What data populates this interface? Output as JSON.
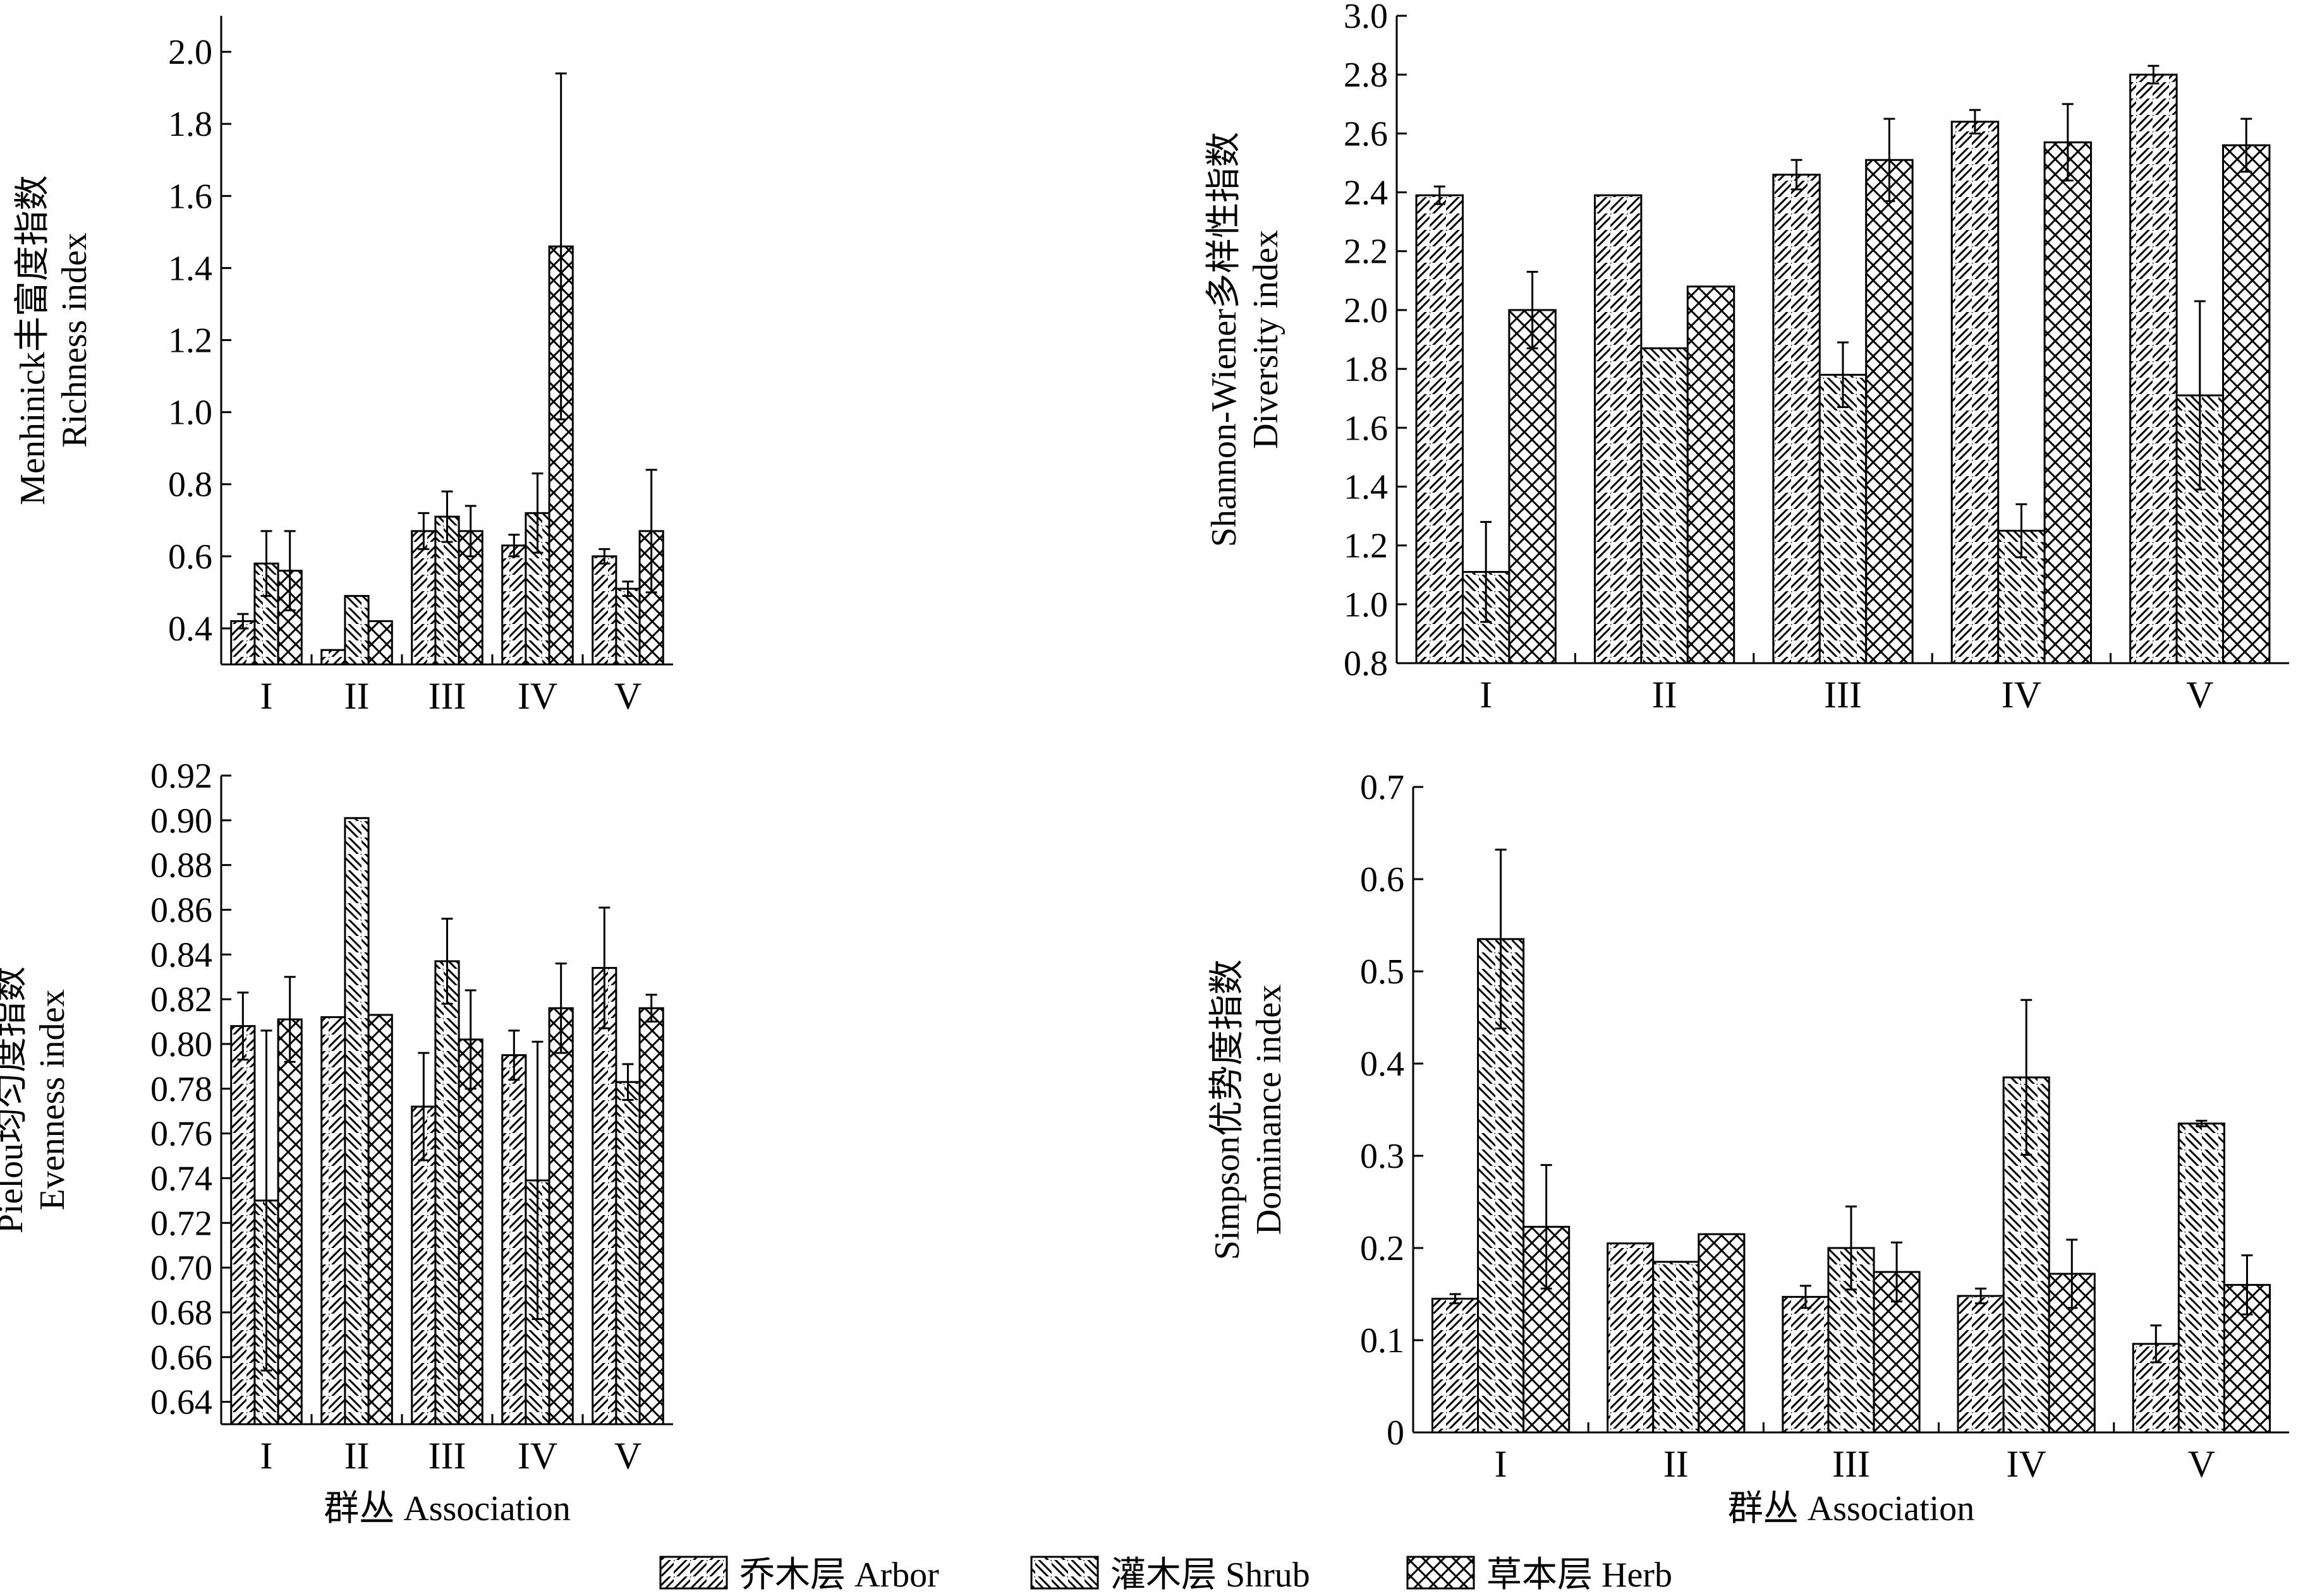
{
  "chart_data": [
    {
      "type": "bar",
      "ylabel": [
        "Menhinick丰富度指数",
        "Richness index"
      ],
      "xlabel": "",
      "categories": [
        "I",
        "II",
        "III",
        "IV",
        "V"
      ],
      "ylim": [
        0.3,
        2.1
      ],
      "yticks": [
        "0.4",
        "0.6",
        "0.8",
        "1.0",
        "1.2",
        "1.4",
        "1.6",
        "1.8",
        "2.0"
      ],
      "series": [
        {
          "name": "乔木层 Arbor",
          "values": [
            0.42,
            0.34,
            0.67,
            0.63,
            0.6
          ],
          "errors": [
            0.02,
            0,
            0.05,
            0.03,
            0.02
          ]
        },
        {
          "name": "灌木层 Shrub",
          "values": [
            0.58,
            0.49,
            0.71,
            0.72,
            0.51
          ],
          "errors": [
            0.09,
            0,
            0.07,
            0.11,
            0.02
          ]
        },
        {
          "name": "草本层 Herb",
          "values": [
            0.56,
            0.42,
            0.67,
            1.46,
            0.67
          ],
          "errors": [
            0.11,
            0,
            0.07,
            0.48,
            0.17
          ]
        }
      ]
    },
    {
      "type": "bar",
      "ylabel": [
        "Shannon-Wiener多样性指数",
        "Diversity index"
      ],
      "xlabel": "",
      "categories": [
        "I",
        "II",
        "III",
        "IV",
        "V"
      ],
      "ylim": [
        0.8,
        3.0
      ],
      "yticks": [
        "0.8",
        "1.0",
        "1.2",
        "1.4",
        "1.6",
        "1.8",
        "2.0",
        "2.2",
        "2.4",
        "2.6",
        "2.8",
        "3.0"
      ],
      "series": [
        {
          "name": "乔木层 Arbor",
          "values": [
            2.39,
            2.39,
            2.46,
            2.64,
            2.8
          ],
          "errors": [
            0.03,
            0,
            0.05,
            0.04,
            0.03
          ]
        },
        {
          "name": "灌木层 Shrub",
          "values": [
            1.11,
            1.87,
            1.78,
            1.25,
            1.71
          ],
          "errors": [
            0.17,
            0,
            0.11,
            0.09,
            0.32
          ]
        },
        {
          "name": "草本层 Herb",
          "values": [
            2.0,
            2.08,
            2.51,
            2.57,
            2.56
          ],
          "errors": [
            0.13,
            0,
            0.14,
            0.13,
            0.09
          ]
        }
      ]
    },
    {
      "type": "bar",
      "ylabel": [
        "Pielou均匀度指数",
        "Evenness index"
      ],
      "xlabel": "群丛 Association",
      "categories": [
        "I",
        "II",
        "III",
        "IV",
        "V"
      ],
      "ylim": [
        0.63,
        0.92
      ],
      "yticks": [
        "0.64",
        "0.66",
        "0.68",
        "0.70",
        "0.72",
        "0.74",
        "0.76",
        "0.78",
        "0.80",
        "0.82",
        "0.84",
        "0.86",
        "0.88",
        "0.90",
        "0.92"
      ],
      "series": [
        {
          "name": "乔木层 Arbor",
          "values": [
            0.808,
            0.812,
            0.772,
            0.795,
            0.834
          ],
          "errors": [
            0.015,
            0,
            0.024,
            0.011,
            0.027
          ]
        },
        {
          "name": "灌木层 Shrub",
          "values": [
            0.73,
            0.901,
            0.837,
            0.739,
            0.783
          ],
          "errors": [
            0.076,
            0,
            0.019,
            0.062,
            0.008
          ]
        },
        {
          "name": "草本层 Herb",
          "values": [
            0.811,
            0.813,
            0.802,
            0.816,
            0.816
          ],
          "errors": [
            0.019,
            0,
            0.022,
            0.02,
            0.006
          ]
        }
      ]
    },
    {
      "type": "bar",
      "ylabel": [
        "Simpson优势度指数",
        "Dominance index"
      ],
      "xlabel": "群丛 Association",
      "categories": [
        "I",
        "II",
        "III",
        "IV",
        "V"
      ],
      "ylim": [
        0,
        0.7
      ],
      "yticks": [
        "0",
        "0.1",
        "0.2",
        "0.3",
        "0.4",
        "0.5",
        "0.6",
        "0.7"
      ],
      "series": [
        {
          "name": "乔木层 Arbor",
          "values": [
            0.145,
            0.205,
            0.147,
            0.148,
            0.096
          ],
          "errors": [
            0.005,
            0,
            0.012,
            0.008,
            0.02
          ]
        },
        {
          "name": "灌木层 Shrub",
          "values": [
            0.535,
            0.185,
            0.2,
            0.385,
            0.335
          ],
          "errors": [
            0.097,
            0,
            0.045,
            0.084,
            0.003
          ]
        },
        {
          "name": "草本层 Herb",
          "values": [
            0.223,
            0.215,
            0.174,
            0.172,
            0.16
          ],
          "errors": [
            0.067,
            0,
            0.032,
            0.037,
            0.032
          ]
        }
      ]
    }
  ],
  "legend": {
    "items": [
      {
        "label": "乔木层 Arbor",
        "pattern": "diag-right"
      },
      {
        "label": "灌木层 Shrub",
        "pattern": "diag-left"
      },
      {
        "label": "草本层 Herb",
        "pattern": "cross"
      }
    ]
  },
  "colors": {
    "ink": "#000000",
    "background": "#ffffff"
  }
}
